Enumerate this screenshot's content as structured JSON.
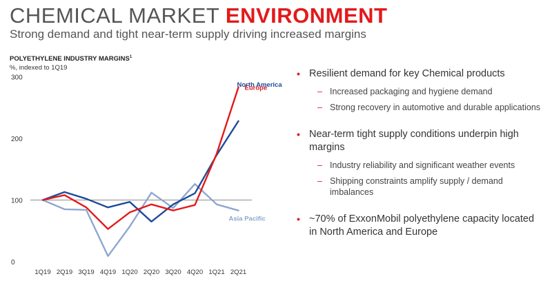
{
  "header": {
    "title_plain": "CHEMICAL MARKET ",
    "title_accent": "ENVIRONMENT",
    "subtitle": "Strong demand and tight near-term supply driving increased margins"
  },
  "colors": {
    "accent_red": "#e3191b",
    "europe": "#e3191b",
    "north_america": "#1f4b99",
    "asia_pacific": "#8fa7cf",
    "reference_line": "#8c8c8c"
  },
  "chart_data": {
    "type": "line",
    "title": "POLYETHYLENE INDUSTRY MARGINS",
    "title_footnote": "1",
    "ylabel": "%, indexed to 1Q19",
    "categories": [
      "1Q19",
      "2Q19",
      "3Q19",
      "4Q19",
      "1Q20",
      "2Q20",
      "3Q20",
      "4Q20",
      "1Q21",
      "2Q21"
    ],
    "yticks": [
      "0",
      "100",
      "200",
      "300"
    ],
    "ylim": [
      0,
      300
    ],
    "reference_line": 100,
    "grid": false,
    "legend": "direct labels at line ends",
    "series": [
      {
        "name": "Europe",
        "values": [
          100,
          108,
          88,
          53,
          80,
          93,
          83,
          92,
          175,
          283
        ]
      },
      {
        "name": "North America",
        "values": [
          100,
          113,
          102,
          88,
          97,
          65,
          93,
          111,
          173,
          228
        ]
      },
      {
        "name": "Asia Pacific",
        "values": [
          100,
          85,
          84,
          9,
          57,
          112,
          87,
          126,
          93,
          83
        ]
      }
    ]
  },
  "bullets": [
    {
      "text": "Resilient demand for key Chemical products",
      "subs": [
        "Increased packaging and hygiene demand",
        "Strong recovery in automotive and durable applications"
      ]
    },
    {
      "text": "Near-term tight supply conditions underpin high margins",
      "subs": [
        "Industry reliability and significant weather events",
        "Shipping constraints amplify supply / demand imbalances"
      ]
    },
    {
      "text": "~70% of ExxonMobil polyethylene capacity located in North America and Europe",
      "subs": []
    }
  ],
  "bullet_glyph": "•",
  "dash_glyph": "–"
}
